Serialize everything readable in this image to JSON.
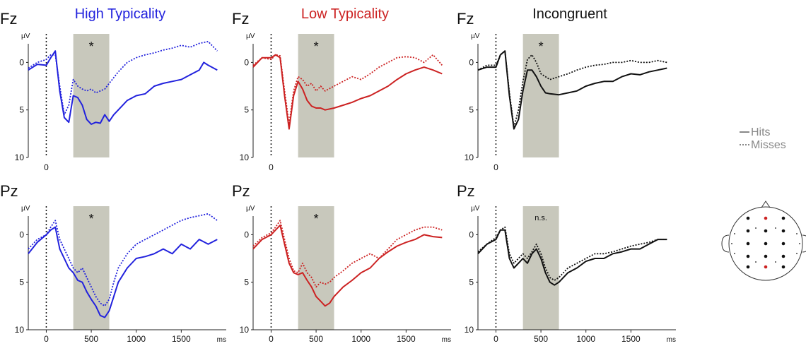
{
  "chart_data": {
    "type": "line",
    "electrodes": [
      "Fz",
      "Pz"
    ],
    "y_unit": "µV",
    "x_unit": "ms",
    "xlim": [
      -200,
      2000
    ],
    "ylim_inverted": [
      10,
      -3
    ],
    "y_ticks": [
      0,
      5,
      10
    ],
    "x_ticks": [
      0,
      500,
      1000,
      1500
    ],
    "highlight_window": [
      300,
      700
    ],
    "legend": {
      "position": "right",
      "entries": [
        {
          "label": "Hits",
          "style": "solid"
        },
        {
          "label": "Misses",
          "style": "dotted"
        }
      ]
    },
    "panels": [
      {
        "id": "high-fz",
        "condition": "High Typicality",
        "electrode": "Fz",
        "color": "#2222dd",
        "show_title": true,
        "annotation": "*",
        "show_x_ticks": false,
        "series": [
          {
            "name": "Hits",
            "x": [
              -200,
              -100,
              0,
              50,
              100,
              150,
              200,
              250,
              300,
              350,
              400,
              450,
              500,
              550,
              600,
              650,
              700,
              750,
              800,
              900,
              1000,
              1100,
              1200,
              1300,
              1400,
              1500,
              1600,
              1700,
              1750,
              1800,
              1900
            ],
            "y": [
              0.8,
              0.2,
              0.3,
              -0.5,
              -1.2,
              3.0,
              5.8,
              6.3,
              3.5,
              3.7,
              4.5,
              6.0,
              6.5,
              6.3,
              6.4,
              5.5,
              6.2,
              5.5,
              5.0,
              4.0,
              3.5,
              3.3,
              2.5,
              2.2,
              2.0,
              1.8,
              1.3,
              0.8,
              0.0,
              0.3,
              0.8
            ]
          },
          {
            "name": "Misses",
            "x": [
              -200,
              -100,
              0,
              50,
              100,
              150,
              200,
              250,
              300,
              350,
              400,
              450,
              500,
              550,
              600,
              650,
              700,
              800,
              900,
              1000,
              1100,
              1200,
              1300,
              1400,
              1500,
              1600,
              1700,
              1800,
              1900
            ],
            "y": [
              0.6,
              0.0,
              -0.3,
              -0.8,
              -0.8,
              2.5,
              5.5,
              4.5,
              1.8,
              2.5,
              2.8,
              3.0,
              2.8,
              3.2,
              3.0,
              2.8,
              2.2,
              1.0,
              0.0,
              -0.5,
              -0.8,
              -1.0,
              -1.3,
              -1.5,
              -1.8,
              -1.6,
              -2.0,
              -2.2,
              -1.2
            ]
          }
        ]
      },
      {
        "id": "low-fz",
        "condition": "Low Typicality",
        "electrode": "Fz",
        "color": "#cc2222",
        "show_title": true,
        "annotation": "*",
        "show_x_ticks": false,
        "series": [
          {
            "name": "Hits",
            "x": [
              -200,
              -100,
              0,
              50,
              100,
              150,
              200,
              250,
              300,
              350,
              400,
              450,
              500,
              550,
              600,
              700,
              800,
              900,
              1000,
              1100,
              1200,
              1300,
              1400,
              1500,
              1600,
              1700,
              1800,
              1900
            ],
            "y": [
              0.5,
              -0.5,
              -0.5,
              -0.8,
              -0.5,
              3.5,
              7.0,
              3.5,
              2.0,
              2.8,
              4.0,
              4.6,
              4.8,
              4.8,
              5.0,
              4.8,
              4.5,
              4.2,
              3.8,
              3.5,
              3.0,
              2.5,
              1.8,
              1.2,
              0.8,
              0.5,
              0.8,
              1.2
            ]
          },
          {
            "name": "Misses",
            "x": [
              -200,
              -100,
              0,
              50,
              100,
              150,
              200,
              250,
              300,
              350,
              400,
              450,
              500,
              550,
              600,
              700,
              800,
              900,
              1000,
              1100,
              1200,
              1300,
              1400,
              1500,
              1600,
              1700,
              1800,
              1900
            ],
            "y": [
              0.3,
              -0.5,
              -0.3,
              -0.8,
              -0.7,
              3.0,
              6.5,
              3.0,
              1.5,
              1.8,
              2.5,
              2.2,
              3.0,
              2.5,
              3.0,
              2.5,
              2.0,
              1.5,
              1.8,
              1.2,
              0.5,
              0.0,
              -0.5,
              -0.6,
              -0.5,
              0.0,
              -0.8,
              0.3
            ]
          }
        ]
      },
      {
        "id": "inc-fz",
        "condition": "Incongruent",
        "electrode": "Fz",
        "color": "#111111",
        "show_title": true,
        "annotation": "*",
        "show_x_ticks": false,
        "series": [
          {
            "name": "Hits",
            "x": [
              -200,
              -100,
              0,
              50,
              100,
              150,
              200,
              250,
              300,
              350,
              400,
              450,
              500,
              550,
              600,
              700,
              800,
              900,
              1000,
              1100,
              1200,
              1300,
              1400,
              1500,
              1600,
              1700,
              1800,
              1900
            ],
            "y": [
              0.8,
              0.5,
              0.5,
              -0.8,
              -1.2,
              3.5,
              7.0,
              6.0,
              3.0,
              0.8,
              0.8,
              1.5,
              2.5,
              3.2,
              3.3,
              3.4,
              3.2,
              3.0,
              2.5,
              2.2,
              2.0,
              2.0,
              1.5,
              1.2,
              1.3,
              1.0,
              0.8,
              0.6
            ]
          },
          {
            "name": "Misses",
            "x": [
              -200,
              -100,
              0,
              50,
              100,
              150,
              200,
              250,
              300,
              350,
              400,
              450,
              500,
              550,
              600,
              700,
              800,
              900,
              1000,
              1100,
              1200,
              1300,
              1400,
              1500,
              1600,
              1700,
              1800,
              1900
            ],
            "y": [
              0.8,
              0.3,
              0.3,
              -0.8,
              -1.2,
              3.2,
              6.8,
              5.0,
              2.0,
              -0.3,
              -0.8,
              0.0,
              1.2,
              1.5,
              1.8,
              1.5,
              1.2,
              0.8,
              0.5,
              0.3,
              0.2,
              0.0,
              0.0,
              -0.2,
              0.0,
              0.0,
              -0.2,
              0.0
            ]
          }
        ]
      },
      {
        "id": "high-pz",
        "condition": "High Typicality",
        "electrode": "Pz",
        "color": "#2222dd",
        "show_title": false,
        "annotation": "*",
        "show_x_ticks": true,
        "series": [
          {
            "name": "Hits",
            "x": [
              -200,
              -100,
              0,
              50,
              100,
              150,
              200,
              250,
              300,
              350,
              400,
              450,
              500,
              550,
              600,
              650,
              700,
              750,
              800,
              900,
              1000,
              1100,
              1200,
              1300,
              1400,
              1500,
              1600,
              1700,
              1800,
              1900
            ],
            "y": [
              2.0,
              0.8,
              0.0,
              -0.5,
              -0.8,
              1.5,
              2.5,
              3.5,
              4.0,
              4.8,
              5.0,
              6.0,
              6.8,
              7.5,
              8.5,
              8.7,
              8.0,
              6.5,
              5.0,
              3.5,
              2.5,
              2.3,
              2.0,
              1.5,
              2.0,
              1.0,
              1.5,
              0.5,
              1.0,
              0.5
            ]
          },
          {
            "name": "Misses",
            "x": [
              -200,
              -100,
              0,
              50,
              100,
              150,
              200,
              250,
              300,
              350,
              400,
              450,
              500,
              550,
              600,
              650,
              700,
              750,
              800,
              900,
              1000,
              1100,
              1200,
              1300,
              1400,
              1500,
              1600,
              1700,
              1800,
              1900
            ],
            "y": [
              1.5,
              0.5,
              0.0,
              -0.8,
              -1.5,
              0.5,
              1.5,
              2.5,
              3.5,
              4.0,
              3.5,
              4.5,
              5.5,
              6.5,
              7.2,
              7.5,
              6.8,
              5.0,
              3.5,
              2.0,
              1.0,
              0.5,
              0.0,
              -0.5,
              -1.0,
              -1.5,
              -1.8,
              -2.0,
              -2.2,
              -1.5
            ]
          }
        ]
      },
      {
        "id": "low-pz",
        "condition": "Low Typicality",
        "electrode": "Pz",
        "color": "#cc2222",
        "show_title": false,
        "annotation": "*",
        "show_x_ticks": true,
        "series": [
          {
            "name": "Hits",
            "x": [
              -200,
              -100,
              0,
              50,
              100,
              150,
              200,
              250,
              300,
              350,
              400,
              450,
              500,
              550,
              600,
              650,
              700,
              800,
              900,
              1000,
              1100,
              1200,
              1300,
              1400,
              1500,
              1600,
              1700,
              1800,
              1900
            ],
            "y": [
              1.5,
              0.5,
              0.0,
              -0.5,
              -1.0,
              1.0,
              3.0,
              4.0,
              4.2,
              4.0,
              4.8,
              5.5,
              6.5,
              7.0,
              7.5,
              7.2,
              6.5,
              5.5,
              4.8,
              4.0,
              3.5,
              2.5,
              1.8,
              1.2,
              0.8,
              0.5,
              0.0,
              0.2,
              0.3
            ]
          },
          {
            "name": "Misses",
            "x": [
              -200,
              -100,
              0,
              50,
              100,
              150,
              200,
              250,
              300,
              350,
              400,
              450,
              500,
              550,
              600,
              650,
              700,
              800,
              900,
              1000,
              1100,
              1200,
              1300,
              1400,
              1500,
              1600,
              1700,
              1800,
              1900
            ],
            "y": [
              1.2,
              0.3,
              -0.2,
              -0.8,
              -1.5,
              0.5,
              2.5,
              3.8,
              4.0,
              3.0,
              4.0,
              4.5,
              5.5,
              5.0,
              5.2,
              5.0,
              4.5,
              3.8,
              3.0,
              2.5,
              2.0,
              2.5,
              1.5,
              0.5,
              0.0,
              -0.5,
              -0.8,
              -0.8,
              -0.5
            ]
          }
        ]
      },
      {
        "id": "inc-pz",
        "condition": "Incongruent",
        "electrode": "Pz",
        "color": "#111111",
        "show_title": false,
        "annotation": "n.s.",
        "show_x_ticks": true,
        "series": [
          {
            "name": "Hits",
            "x": [
              -200,
              -100,
              0,
              50,
              100,
              150,
              200,
              250,
              300,
              350,
              400,
              450,
              500,
              550,
              600,
              650,
              700,
              800,
              900,
              1000,
              1100,
              1200,
              1300,
              1400,
              1500,
              1600,
              1700,
              1800,
              1900
            ],
            "y": [
              2.0,
              1.0,
              0.5,
              -0.5,
              -0.5,
              2.5,
              3.5,
              3.0,
              2.5,
              3.0,
              2.0,
              1.5,
              2.5,
              4.0,
              5.0,
              5.3,
              5.0,
              4.0,
              3.5,
              2.8,
              2.5,
              2.5,
              2.0,
              1.8,
              1.5,
              1.5,
              1.0,
              0.5,
              0.5
            ]
          },
          {
            "name": "Misses",
            "x": [
              -200,
              -100,
              0,
              50,
              100,
              150,
              200,
              250,
              300,
              350,
              400,
              450,
              500,
              550,
              600,
              650,
              700,
              800,
              900,
              1000,
              1100,
              1200,
              1300,
              1400,
              1500,
              1600,
              1700,
              1800,
              1900
            ],
            "y": [
              1.8,
              1.0,
              0.3,
              -0.5,
              -0.8,
              2.0,
              3.0,
              2.5,
              2.0,
              2.5,
              1.8,
              1.0,
              2.0,
              3.5,
              4.5,
              4.8,
              4.5,
              3.5,
              3.0,
              2.5,
              2.0,
              2.0,
              1.8,
              1.5,
              1.2,
              1.0,
              0.8,
              0.5,
              0.5
            ]
          }
        ]
      }
    ]
  },
  "head_map": {
    "black_dots": 14,
    "red_dots": 2,
    "red_color": "#cc2222"
  }
}
